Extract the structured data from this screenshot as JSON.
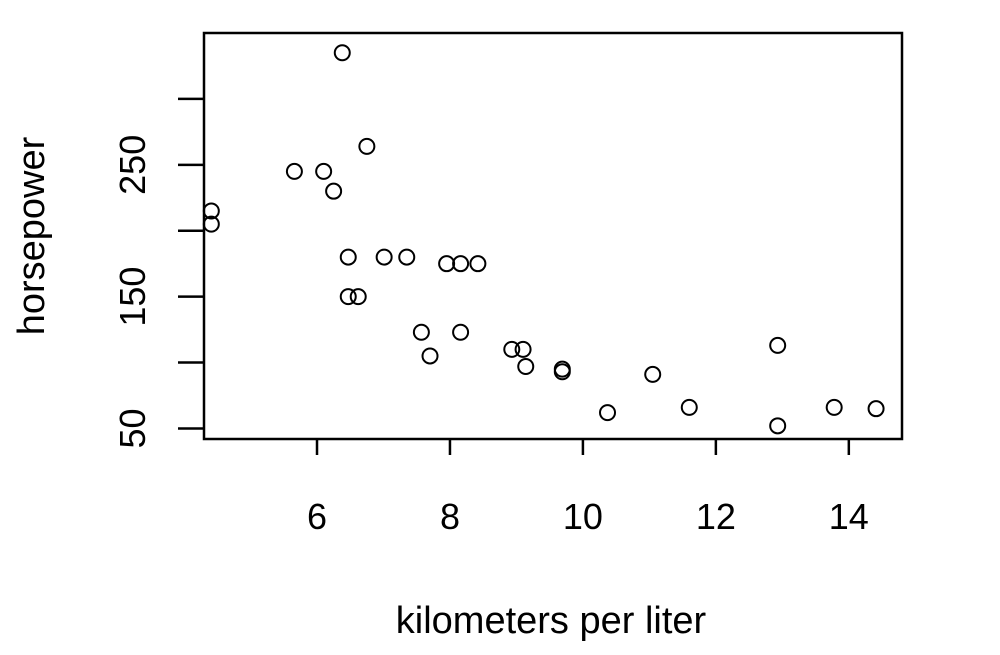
{
  "chart_data": {
    "type": "scatter",
    "title": "",
    "xlabel": "kilometers per liter",
    "ylabel": "horsepower",
    "xlim": [
      4.3,
      14.8
    ],
    "ylim": [
      42,
      350
    ],
    "x_ticks": [
      "6",
      "8",
      "10",
      "12",
      "14"
    ],
    "y_ticks": [
      "50",
      "150",
      "250"
    ],
    "y_minor_ticks": [
      100,
      200,
      300
    ],
    "grid": false,
    "marker": "open-circle",
    "series": [
      {
        "points": [
          {
            "x": 6.38,
            "y": 335
          },
          {
            "x": 6.75,
            "y": 264
          },
          {
            "x": 5.66,
            "y": 245
          },
          {
            "x": 6.1,
            "y": 245
          },
          {
            "x": 6.25,
            "y": 230
          },
          {
            "x": 4.41,
            "y": 215
          },
          {
            "x": 4.41,
            "y": 205
          },
          {
            "x": 6.47,
            "y": 180
          },
          {
            "x": 7.01,
            "y": 180
          },
          {
            "x": 7.35,
            "y": 180
          },
          {
            "x": 7.95,
            "y": 175
          },
          {
            "x": 8.16,
            "y": 175
          },
          {
            "x": 8.42,
            "y": 175
          },
          {
            "x": 6.47,
            "y": 150
          },
          {
            "x": 6.62,
            "y": 150
          },
          {
            "x": 7.57,
            "y": 123
          },
          {
            "x": 8.16,
            "y": 123
          },
          {
            "x": 7.7,
            "y": 105
          },
          {
            "x": 8.93,
            "y": 110
          },
          {
            "x": 9.1,
            "y": 110
          },
          {
            "x": 9.14,
            "y": 97
          },
          {
            "x": 9.69,
            "y": 93
          },
          {
            "x": 9.69,
            "y": 95
          },
          {
            "x": 11.05,
            "y": 91
          },
          {
            "x": 12.93,
            "y": 113
          },
          {
            "x": 10.37,
            "y": 62
          },
          {
            "x": 11.6,
            "y": 66
          },
          {
            "x": 12.93,
            "y": 52
          },
          {
            "x": 13.78,
            "y": 66
          },
          {
            "x": 14.41,
            "y": 65
          }
        ]
      }
    ]
  }
}
